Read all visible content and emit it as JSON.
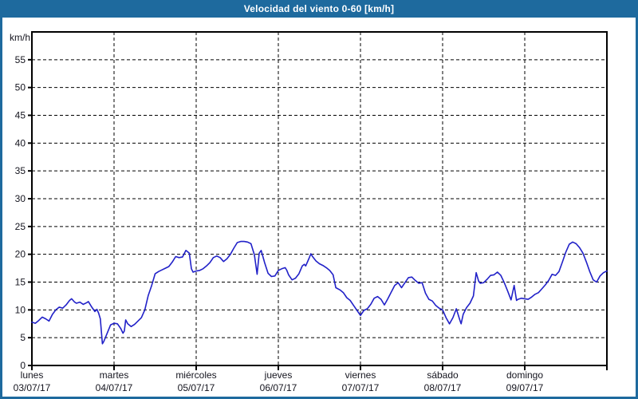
{
  "header": {
    "title": "Velocidad del viento 0-60 [km/h]"
  },
  "colors": {
    "frame": "#1e6a9e",
    "header_bg": "#1e6a9e",
    "header_text": "#ffffff",
    "line": "#2121c8",
    "grid": "#000000",
    "text": "#14141e",
    "plot_bg": "#ffffff"
  },
  "chart_data": {
    "type": "line",
    "title": "Velocidad del viento 0-60 [km/h]",
    "ylabel": "km/h",
    "unit_label": "km/h",
    "ylim": [
      0,
      60
    ],
    "y_tick_step": 5,
    "y_ticks": [
      0,
      5,
      10,
      15,
      20,
      25,
      30,
      35,
      40,
      45,
      50,
      55
    ],
    "grid": "dashed",
    "legend": "none",
    "x_hours_total": 168,
    "x_days": [
      {
        "name": "lunes",
        "date": "03/07/17"
      },
      {
        "name": "martes",
        "date": "04/07/17"
      },
      {
        "name": "miércoles",
        "date": "05/07/17"
      },
      {
        "name": "jueves",
        "date": "06/07/17"
      },
      {
        "name": "viernes",
        "date": "07/07/17"
      },
      {
        "name": "sábado",
        "date": "08/07/17"
      },
      {
        "name": "domingo",
        "date": "09/07/17"
      }
    ],
    "series": [
      {
        "name": "Velocidad del viento [km/h]",
        "points": [
          [
            0,
            7.8
          ],
          [
            1,
            7.6
          ],
          [
            2,
            8.1
          ],
          [
            3,
            8.7
          ],
          [
            4,
            8.4
          ],
          [
            5,
            8.0
          ],
          [
            6,
            9.2
          ],
          [
            7,
            10.0
          ],
          [
            8,
            10.5
          ],
          [
            9,
            10.3
          ],
          [
            10,
            10.9
          ],
          [
            11,
            11.7
          ],
          [
            11.6,
            12.0
          ],
          [
            12.5,
            11.4
          ],
          [
            13,
            11.2
          ],
          [
            14,
            11.4
          ],
          [
            15,
            11.0
          ],
          [
            16,
            11.3
          ],
          [
            16.5,
            11.5
          ],
          [
            17.5,
            10.5
          ],
          [
            18.4,
            9.7
          ],
          [
            19,
            10.1
          ],
          [
            19.5,
            9.4
          ],
          [
            20,
            8.4
          ],
          [
            20.6,
            3.9
          ],
          [
            21,
            4.3
          ],
          [
            22,
            5.8
          ],
          [
            23,
            7.3
          ],
          [
            24,
            7.6
          ],
          [
            25,
            7.5
          ],
          [
            26,
            6.6
          ],
          [
            26.6,
            5.8
          ],
          [
            27,
            6.2
          ],
          [
            27.4,
            8.2
          ],
          [
            28,
            7.5
          ],
          [
            29,
            7.0
          ],
          [
            30,
            7.4
          ],
          [
            31,
            8.0
          ],
          [
            32,
            8.6
          ],
          [
            33,
            10.0
          ],
          [
            34,
            12.6
          ],
          [
            35,
            14.4
          ],
          [
            36,
            16.5
          ],
          [
            37,
            16.9
          ],
          [
            38,
            17.2
          ],
          [
            39,
            17.5
          ],
          [
            40,
            17.8
          ],
          [
            41,
            18.6
          ],
          [
            42,
            19.6
          ],
          [
            43,
            19.4
          ],
          [
            44,
            19.5
          ],
          [
            45,
            20.7
          ],
          [
            46,
            20.2
          ],
          [
            46.6,
            17.4
          ],
          [
            47.1,
            16.8
          ],
          [
            48,
            17.0
          ],
          [
            49,
            17.1
          ],
          [
            50,
            17.4
          ],
          [
            51,
            17.9
          ],
          [
            52,
            18.5
          ],
          [
            53,
            19.4
          ],
          [
            54,
            19.7
          ],
          [
            55,
            19.4
          ],
          [
            56,
            18.7
          ],
          [
            57,
            19.2
          ],
          [
            58,
            20.0
          ],
          [
            59,
            21.1
          ],
          [
            60,
            22.1
          ],
          [
            61,
            22.3
          ],
          [
            62,
            22.3
          ],
          [
            63,
            22.2
          ],
          [
            64,
            21.9
          ],
          [
            65,
            19.9
          ],
          [
            65.8,
            16.4
          ],
          [
            66.4,
            20.2
          ],
          [
            67,
            20.7
          ],
          [
            68,
            18.5
          ],
          [
            69,
            16.6
          ],
          [
            70,
            16.0
          ],
          [
            71,
            16.1
          ],
          [
            72,
            17.1
          ],
          [
            73,
            17.4
          ],
          [
            74,
            17.6
          ],
          [
            74.5,
            17.1
          ],
          [
            75,
            16.3
          ],
          [
            76,
            15.4
          ],
          [
            77,
            15.7
          ],
          [
            78,
            16.5
          ],
          [
            79,
            17.9
          ],
          [
            79.6,
            18.2
          ],
          [
            80,
            17.9
          ],
          [
            81,
            19.3
          ],
          [
            81.5,
            20.1
          ],
          [
            82,
            19.6
          ],
          [
            83,
            18.8
          ],
          [
            84,
            18.3
          ],
          [
            85,
            18.0
          ],
          [
            86,
            17.6
          ],
          [
            87,
            17.1
          ],
          [
            88,
            16.3
          ],
          [
            88.8,
            14.0
          ],
          [
            90,
            13.6
          ],
          [
            91,
            13.1
          ],
          [
            92,
            12.2
          ],
          [
            93,
            11.7
          ],
          [
            94,
            10.8
          ],
          [
            95,
            9.9
          ],
          [
            96,
            9.0
          ],
          [
            97,
            9.9
          ],
          [
            98,
            10.2
          ],
          [
            99,
            11.0
          ],
          [
            100,
            12.1
          ],
          [
            101,
            12.4
          ],
          [
            102,
            11.9
          ],
          [
            103,
            10.9
          ],
          [
            104,
            12.0
          ],
          [
            105,
            13.2
          ],
          [
            106,
            14.4
          ],
          [
            107,
            14.9
          ],
          [
            108,
            14.0
          ],
          [
            109,
            14.9
          ],
          [
            110,
            15.8
          ],
          [
            111,
            15.9
          ],
          [
            112,
            15.3
          ],
          [
            113,
            14.8
          ],
          [
            114,
            14.9
          ],
          [
            115,
            13.0
          ],
          [
            116,
            11.9
          ],
          [
            117,
            11.6
          ],
          [
            118,
            10.8
          ],
          [
            119,
            10.3
          ],
          [
            120,
            10.0
          ],
          [
            121,
            8.6
          ],
          [
            122,
            7.5
          ],
          [
            123,
            8.6
          ],
          [
            124,
            10.2
          ],
          [
            125,
            8.2
          ],
          [
            125.4,
            7.5
          ],
          [
            126,
            9.2
          ],
          [
            127,
            10.4
          ],
          [
            128,
            11.2
          ],
          [
            129,
            12.5
          ],
          [
            129.8,
            16.7
          ],
          [
            130.5,
            15.2
          ],
          [
            131,
            14.8
          ],
          [
            132,
            14.9
          ],
          [
            133,
            15.5
          ],
          [
            134,
            16.2
          ],
          [
            135,
            16.3
          ],
          [
            136,
            16.8
          ],
          [
            137,
            16.2
          ],
          [
            138,
            14.9
          ],
          [
            139,
            13.4
          ],
          [
            140,
            11.8
          ],
          [
            140.9,
            14.4
          ],
          [
            141.6,
            11.7
          ],
          [
            142,
            11.9
          ],
          [
            143,
            12.1
          ],
          [
            144,
            12.0
          ],
          [
            145,
            11.9
          ],
          [
            146,
            12.3
          ],
          [
            147,
            12.8
          ],
          [
            148,
            13.1
          ],
          [
            149,
            13.8
          ],
          [
            150,
            14.5
          ],
          [
            151,
            15.3
          ],
          [
            152,
            16.4
          ],
          [
            153,
            16.2
          ],
          [
            154,
            16.9
          ],
          [
            155,
            18.6
          ],
          [
            156,
            20.4
          ],
          [
            157,
            21.8
          ],
          [
            158,
            22.2
          ],
          [
            159,
            21.9
          ],
          [
            160,
            21.2
          ],
          [
            161,
            20.2
          ],
          [
            162,
            18.6
          ],
          [
            163,
            16.9
          ],
          [
            164,
            15.4
          ],
          [
            165,
            15.0
          ],
          [
            166,
            16.1
          ],
          [
            167,
            16.7
          ],
          [
            168,
            17.0
          ]
        ]
      }
    ]
  }
}
